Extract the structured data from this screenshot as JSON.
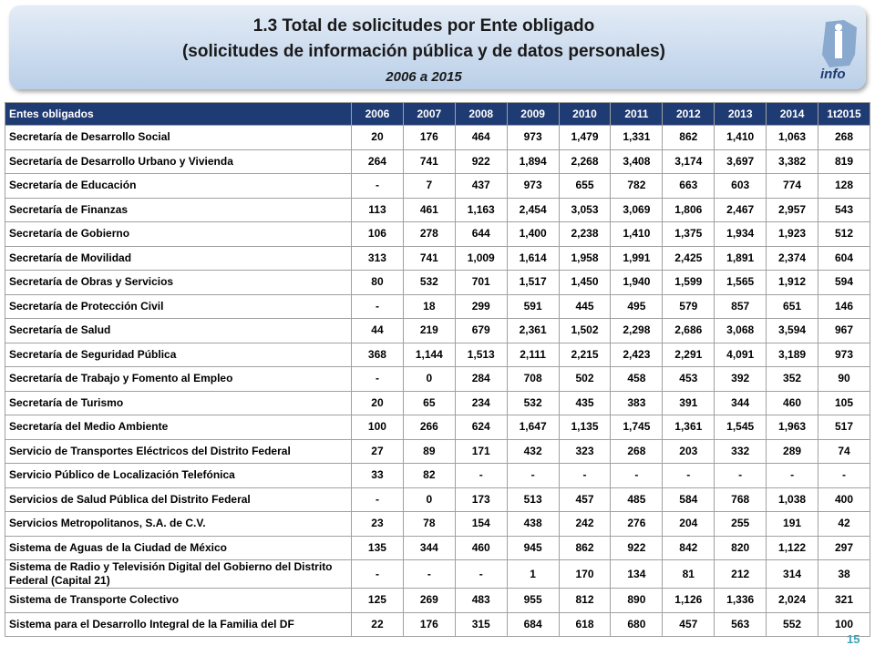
{
  "header": {
    "title": "1.3 Total de solicitudes por Ente obligado",
    "subtitle": "(solicitudes de información pública y de datos personales)",
    "period": "2006 a 2015",
    "logo_text": "info"
  },
  "table": {
    "columns": [
      "Entes obligados",
      "2006",
      "2007",
      "2008",
      "2009",
      "2010",
      "2011",
      "2012",
      "2013",
      "2014",
      "1t2015"
    ],
    "rows": [
      [
        "Secretaría de Desarrollo Social",
        "20",
        "176",
        "464",
        "973",
        "1,479",
        "1,331",
        "862",
        "1,410",
        "1,063",
        "268"
      ],
      [
        "Secretaría de Desarrollo Urbano y Vivienda",
        "264",
        "741",
        "922",
        "1,894",
        "2,268",
        "3,408",
        "3,174",
        "3,697",
        "3,382",
        "819"
      ],
      [
        "Secretaría de Educación",
        "-",
        "7",
        "437",
        "973",
        "655",
        "782",
        "663",
        "603",
        "774",
        "128"
      ],
      [
        "Secretaría de Finanzas",
        "113",
        "461",
        "1,163",
        "2,454",
        "3,053",
        "3,069",
        "1,806",
        "2,467",
        "2,957",
        "543"
      ],
      [
        "Secretaría de Gobierno",
        "106",
        "278",
        "644",
        "1,400",
        "2,238",
        "1,410",
        "1,375",
        "1,934",
        "1,923",
        "512"
      ],
      [
        "Secretaría de Movilidad",
        "313",
        "741",
        "1,009",
        "1,614",
        "1,958",
        "1,991",
        "2,425",
        "1,891",
        "2,374",
        "604"
      ],
      [
        "Secretaría de Obras y Servicios",
        "80",
        "532",
        "701",
        "1,517",
        "1,450",
        "1,940",
        "1,599",
        "1,565",
        "1,912",
        "594"
      ],
      [
        "Secretaría de Protección Civil",
        "-",
        "18",
        "299",
        "591",
        "445",
        "495",
        "579",
        "857",
        "651",
        "146"
      ],
      [
        "Secretaría de Salud",
        "44",
        "219",
        "679",
        "2,361",
        "1,502",
        "2,298",
        "2,686",
        "3,068",
        "3,594",
        "967"
      ],
      [
        "Secretaría de Seguridad Pública",
        "368",
        "1,144",
        "1,513",
        "2,111",
        "2,215",
        "2,423",
        "2,291",
        "4,091",
        "3,189",
        "973"
      ],
      [
        "Secretaría de Trabajo y Fomento al Empleo",
        "-",
        "0",
        "284",
        "708",
        "502",
        "458",
        "453",
        "392",
        "352",
        "90"
      ],
      [
        "Secretaría de Turismo",
        "20",
        "65",
        "234",
        "532",
        "435",
        "383",
        "391",
        "344",
        "460",
        "105"
      ],
      [
        "Secretaría del Medio Ambiente",
        "100",
        "266",
        "624",
        "1,647",
        "1,135",
        "1,745",
        "1,361",
        "1,545",
        "1,963",
        "517"
      ],
      [
        "Servicio de Transportes Eléctricos del Distrito Federal",
        "27",
        "89",
        "171",
        "432",
        "323",
        "268",
        "203",
        "332",
        "289",
        "74"
      ],
      [
        "Servicio Público de Localización Telefónica",
        "33",
        "82",
        "-",
        "-",
        "-",
        "-",
        "-",
        "-",
        "-",
        "-"
      ],
      [
        "Servicios de Salud Pública del Distrito Federal",
        "-",
        "0",
        "173",
        "513",
        "457",
        "485",
        "584",
        "768",
        "1,038",
        "400"
      ],
      [
        "Servicios Metropolitanos, S.A. de C.V.",
        "23",
        "78",
        "154",
        "438",
        "242",
        "276",
        "204",
        "255",
        "191",
        "42"
      ],
      [
        "Sistema de Aguas de la Ciudad de México",
        "135",
        "344",
        "460",
        "945",
        "862",
        "922",
        "842",
        "820",
        "1,122",
        "297"
      ],
      [
        "Sistema de Radio y Televisión Digital del Gobierno del Distrito Federal (Capital 21)",
        "-",
        "-",
        "-",
        "1",
        "170",
        "134",
        "81",
        "212",
        "314",
        "38"
      ],
      [
        "Sistema de Transporte Colectivo",
        "125",
        "269",
        "483",
        "955",
        "812",
        "890",
        "1,126",
        "1,336",
        "2,024",
        "321"
      ],
      [
        "Sistema para el Desarrollo Integral de la Familia del DF",
        "22",
        "176",
        "315",
        "684",
        "618",
        "680",
        "457",
        "563",
        "552",
        "100"
      ]
    ]
  },
  "page_number": "15"
}
